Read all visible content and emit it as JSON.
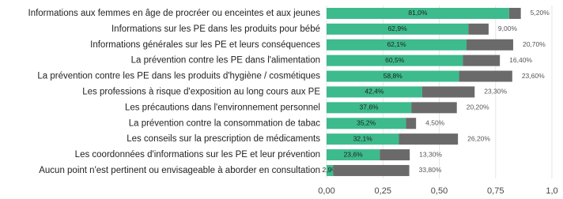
{
  "chart_data": {
    "type": "stacked-bar-horizontal",
    "categories": [
      "Informations aux femmes en âge de procréer ou enceintes et aux jeunes",
      "Informations sur les PE dans les produits pour bébé",
      "Informations générales sur les PE et leurs conséquences",
      "La prévention contre les PE dans l'alimentation",
      "La prévention contre les PE dans les produits d'hygiène / cosmétiques",
      "Les professions à risque d'exposition au long cours aux PE",
      "Les précautions dans l'environnement personnel",
      "La prévention contre la consommation de tabac",
      "Les conseils sur la prescription de médicaments",
      "Les coordonnées d'informations sur les PE et leur prévention",
      "Aucun point n'est pertinent ou envisageable à aborder en consultation"
    ],
    "series": [
      {
        "color": "#3dbb8c",
        "values": [
          0.81,
          0.629,
          0.621,
          0.605,
          0.588,
          0.424,
          0.376,
          0.352,
          0.321,
          0.236,
          0.029
        ],
        "value_labels": [
          "81,0%",
          "62,9%",
          "62,1%",
          "60,5%",
          "58,8%",
          "42,4%",
          "37,6%",
          "35,2%",
          "32,1%",
          "23,6%",
          "2,9%"
        ]
      },
      {
        "color": "#6a6a6a",
        "values": [
          0.052,
          0.09,
          0.207,
          0.164,
          0.236,
          0.233,
          0.202,
          0.045,
          0.262,
          0.133,
          0.338
        ],
        "value_labels": [
          "5,20%",
          "9,00%",
          "20,70%",
          "16,40%",
          "23,60%",
          "23,30%",
          "20,20%",
          "4,50%",
          "26,20%",
          "13,30%",
          "33,80%"
        ]
      }
    ],
    "xlim": [
      0,
      1
    ],
    "xticks": [
      {
        "value": 0,
        "label": "0,00"
      },
      {
        "value": 0.25,
        "label": "0,25"
      },
      {
        "value": 0.5,
        "label": "0,50"
      },
      {
        "value": 0.75,
        "label": "0,75"
      },
      {
        "value": 1,
        "label": "1,0"
      }
    ],
    "grid": true
  }
}
